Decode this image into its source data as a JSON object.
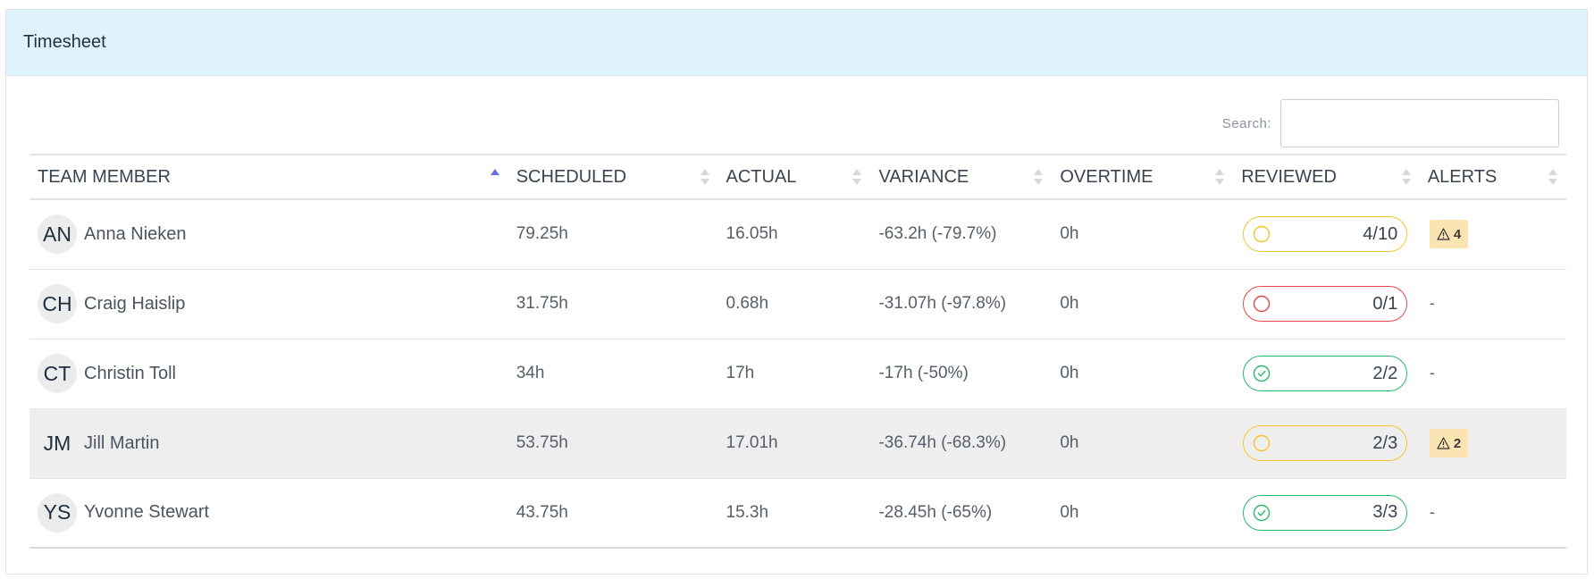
{
  "panel": {
    "title": "Timesheet"
  },
  "search": {
    "label": "Search:",
    "value": "",
    "placeholder": ""
  },
  "columns": [
    {
      "label": "TEAM MEMBER",
      "sort": "asc"
    },
    {
      "label": "SCHEDULED",
      "sort": "none"
    },
    {
      "label": "ACTUAL",
      "sort": "none"
    },
    {
      "label": "VARIANCE",
      "sort": "none"
    },
    {
      "label": "OVERTIME",
      "sort": "none"
    },
    {
      "label": "REVIEWED",
      "sort": "none"
    },
    {
      "label": "ALERTS",
      "sort": "none"
    }
  ],
  "rows": [
    {
      "initials": "AN",
      "name": "Anna Nieken",
      "scheduled": "79.25h",
      "actual": "16.05h",
      "variance": "-63.2h (-79.7%)",
      "overtime": "0h",
      "reviewed": "4/10",
      "reviewed_status": "pending",
      "alerts": "4"
    },
    {
      "initials": "CH",
      "name": "Craig Haislip",
      "scheduled": "31.75h",
      "actual": "0.68h",
      "variance": "-31.07h (-97.8%)",
      "overtime": "0h",
      "reviewed": "0/1",
      "reviewed_status": "none",
      "alerts": "-"
    },
    {
      "initials": "CT",
      "name": "Christin Toll",
      "scheduled": "34h",
      "actual": "17h",
      "variance": "-17h (-50%)",
      "overtime": "0h",
      "reviewed": "2/2",
      "reviewed_status": "done",
      "alerts": "-"
    },
    {
      "initials": "JM",
      "name": "Jill Martin",
      "scheduled": "53.75h",
      "actual": "17.01h",
      "variance": "-36.74h (-68.3%)",
      "overtime": "0h",
      "reviewed": "2/3",
      "reviewed_status": "pending",
      "alerts": "2"
    },
    {
      "initials": "YS",
      "name": "Yvonne Stewart",
      "scheduled": "43.75h",
      "actual": "15.3h",
      "variance": "-28.45h (-65%)",
      "overtime": "0h",
      "reviewed": "3/3",
      "reviewed_status": "done",
      "alerts": "-"
    }
  ],
  "colors": {
    "header_bg": "#e1f3fa",
    "pending": "#f3c52c",
    "none": "#e2474c",
    "done": "#29b86a",
    "alert_bg": "#fbe3b2",
    "sort_active": "#6a6fd8"
  }
}
